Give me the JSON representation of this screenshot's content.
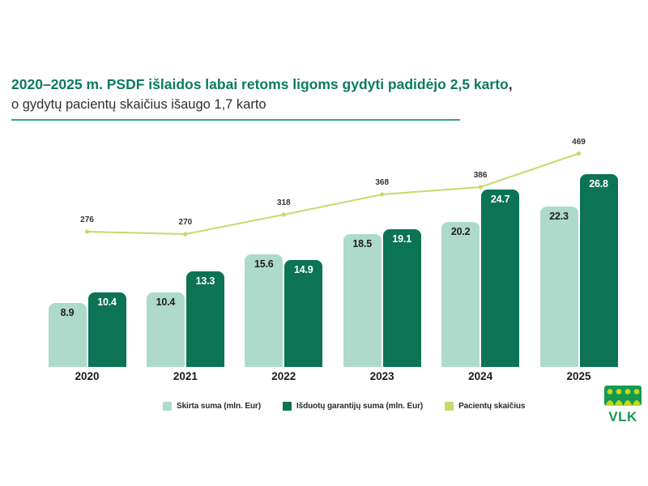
{
  "title": {
    "line1": "2020–2025 m. PSDF išlaidos labai retoms ligoms gydyti padidėjo 2,5 karto",
    "line1_trailing": ",",
    "line2": "o gydytų pacientų skaičius išaugo 1,7 karto"
  },
  "colors": {
    "title_green": "#0d7a5f",
    "subtitle_text": "#2f2f2f",
    "underline": "#3aa08b",
    "bar_light": "#aedacb",
    "bar_dark": "#0c7354",
    "line": "#c5da6c",
    "label_dark": "#1f1f1f",
    "label_light": "#ffffff",
    "logo_green": "#149a4d",
    "logo_figures": "#c6d420"
  },
  "chart_data": {
    "type": "bar",
    "subtype": "grouped bars with secondary line series",
    "categories": [
      "2020",
      "2021",
      "2022",
      "2023",
      "2024",
      "2025"
    ],
    "series": [
      {
        "name": "Skirta suma (mln. Eur)",
        "type": "bar",
        "color": "#aedacb",
        "values": [
          8.9,
          10.4,
          15.6,
          18.5,
          20.2,
          22.3
        ]
      },
      {
        "name": "Išduotų garantijų suma (mln. Eur)",
        "type": "bar",
        "color": "#0c7354",
        "values": [
          10.4,
          13.3,
          14.9,
          19.1,
          24.7,
          26.8
        ]
      },
      {
        "name": "Pacientų skaičius",
        "type": "line",
        "color": "#c5da6c",
        "values": [
          276,
          270,
          318,
          368,
          386,
          469
        ]
      }
    ],
    "title": "2020–2025 m. PSDF išlaidos labai retoms ligoms gydyti padidėjo 2,5 karto, o gydytų pacientų skaičius išaugo 1,7 karto",
    "xlabel": "",
    "ylabel": "",
    "bar_axis_range": [
      0,
      28
    ],
    "line_axis_range": [
      250,
      500
    ],
    "grid": false,
    "legend_position": "bottom",
    "value_labels": "bar values inside bar tops; line values above markers"
  },
  "logo": {
    "text": "VLK"
  }
}
